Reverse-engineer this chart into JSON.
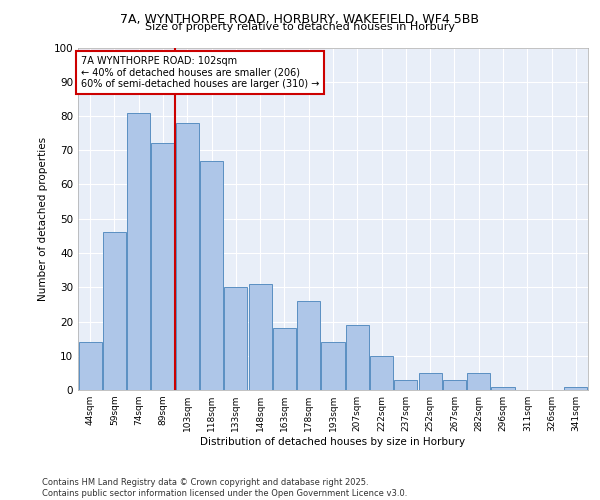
{
  "title1": "7A, WYNTHORPE ROAD, HORBURY, WAKEFIELD, WF4 5BB",
  "title2": "Size of property relative to detached houses in Horbury",
  "xlabel": "Distribution of detached houses by size in Horbury",
  "ylabel": "Number of detached properties",
  "categories": [
    "44sqm",
    "59sqm",
    "74sqm",
    "89sqm",
    "103sqm",
    "118sqm",
    "133sqm",
    "148sqm",
    "163sqm",
    "178sqm",
    "193sqm",
    "207sqm",
    "222sqm",
    "237sqm",
    "252sqm",
    "267sqm",
    "282sqm",
    "296sqm",
    "311sqm",
    "326sqm",
    "341sqm"
  ],
  "values": [
    14,
    46,
    81,
    72,
    78,
    67,
    30,
    31,
    18,
    26,
    14,
    19,
    10,
    3,
    5,
    3,
    5,
    1,
    0,
    0,
    1
  ],
  "bar_color": "#aec6e8",
  "bar_edge_color": "#5a8fc2",
  "vline_x_index": 4,
  "vline_color": "#cc0000",
  "annotation_text": "7A WYNTHORPE ROAD: 102sqm\n← 40% of detached houses are smaller (206)\n60% of semi-detached houses are larger (310) →",
  "annotation_box_color": "#cc0000",
  "ylim": [
    0,
    100
  ],
  "yticks": [
    0,
    10,
    20,
    30,
    40,
    50,
    60,
    70,
    80,
    90,
    100
  ],
  "background_color": "#e8eef8",
  "footer_text": "Contains HM Land Registry data © Crown copyright and database right 2025.\nContains public sector information licensed under the Open Government Licence v3.0."
}
